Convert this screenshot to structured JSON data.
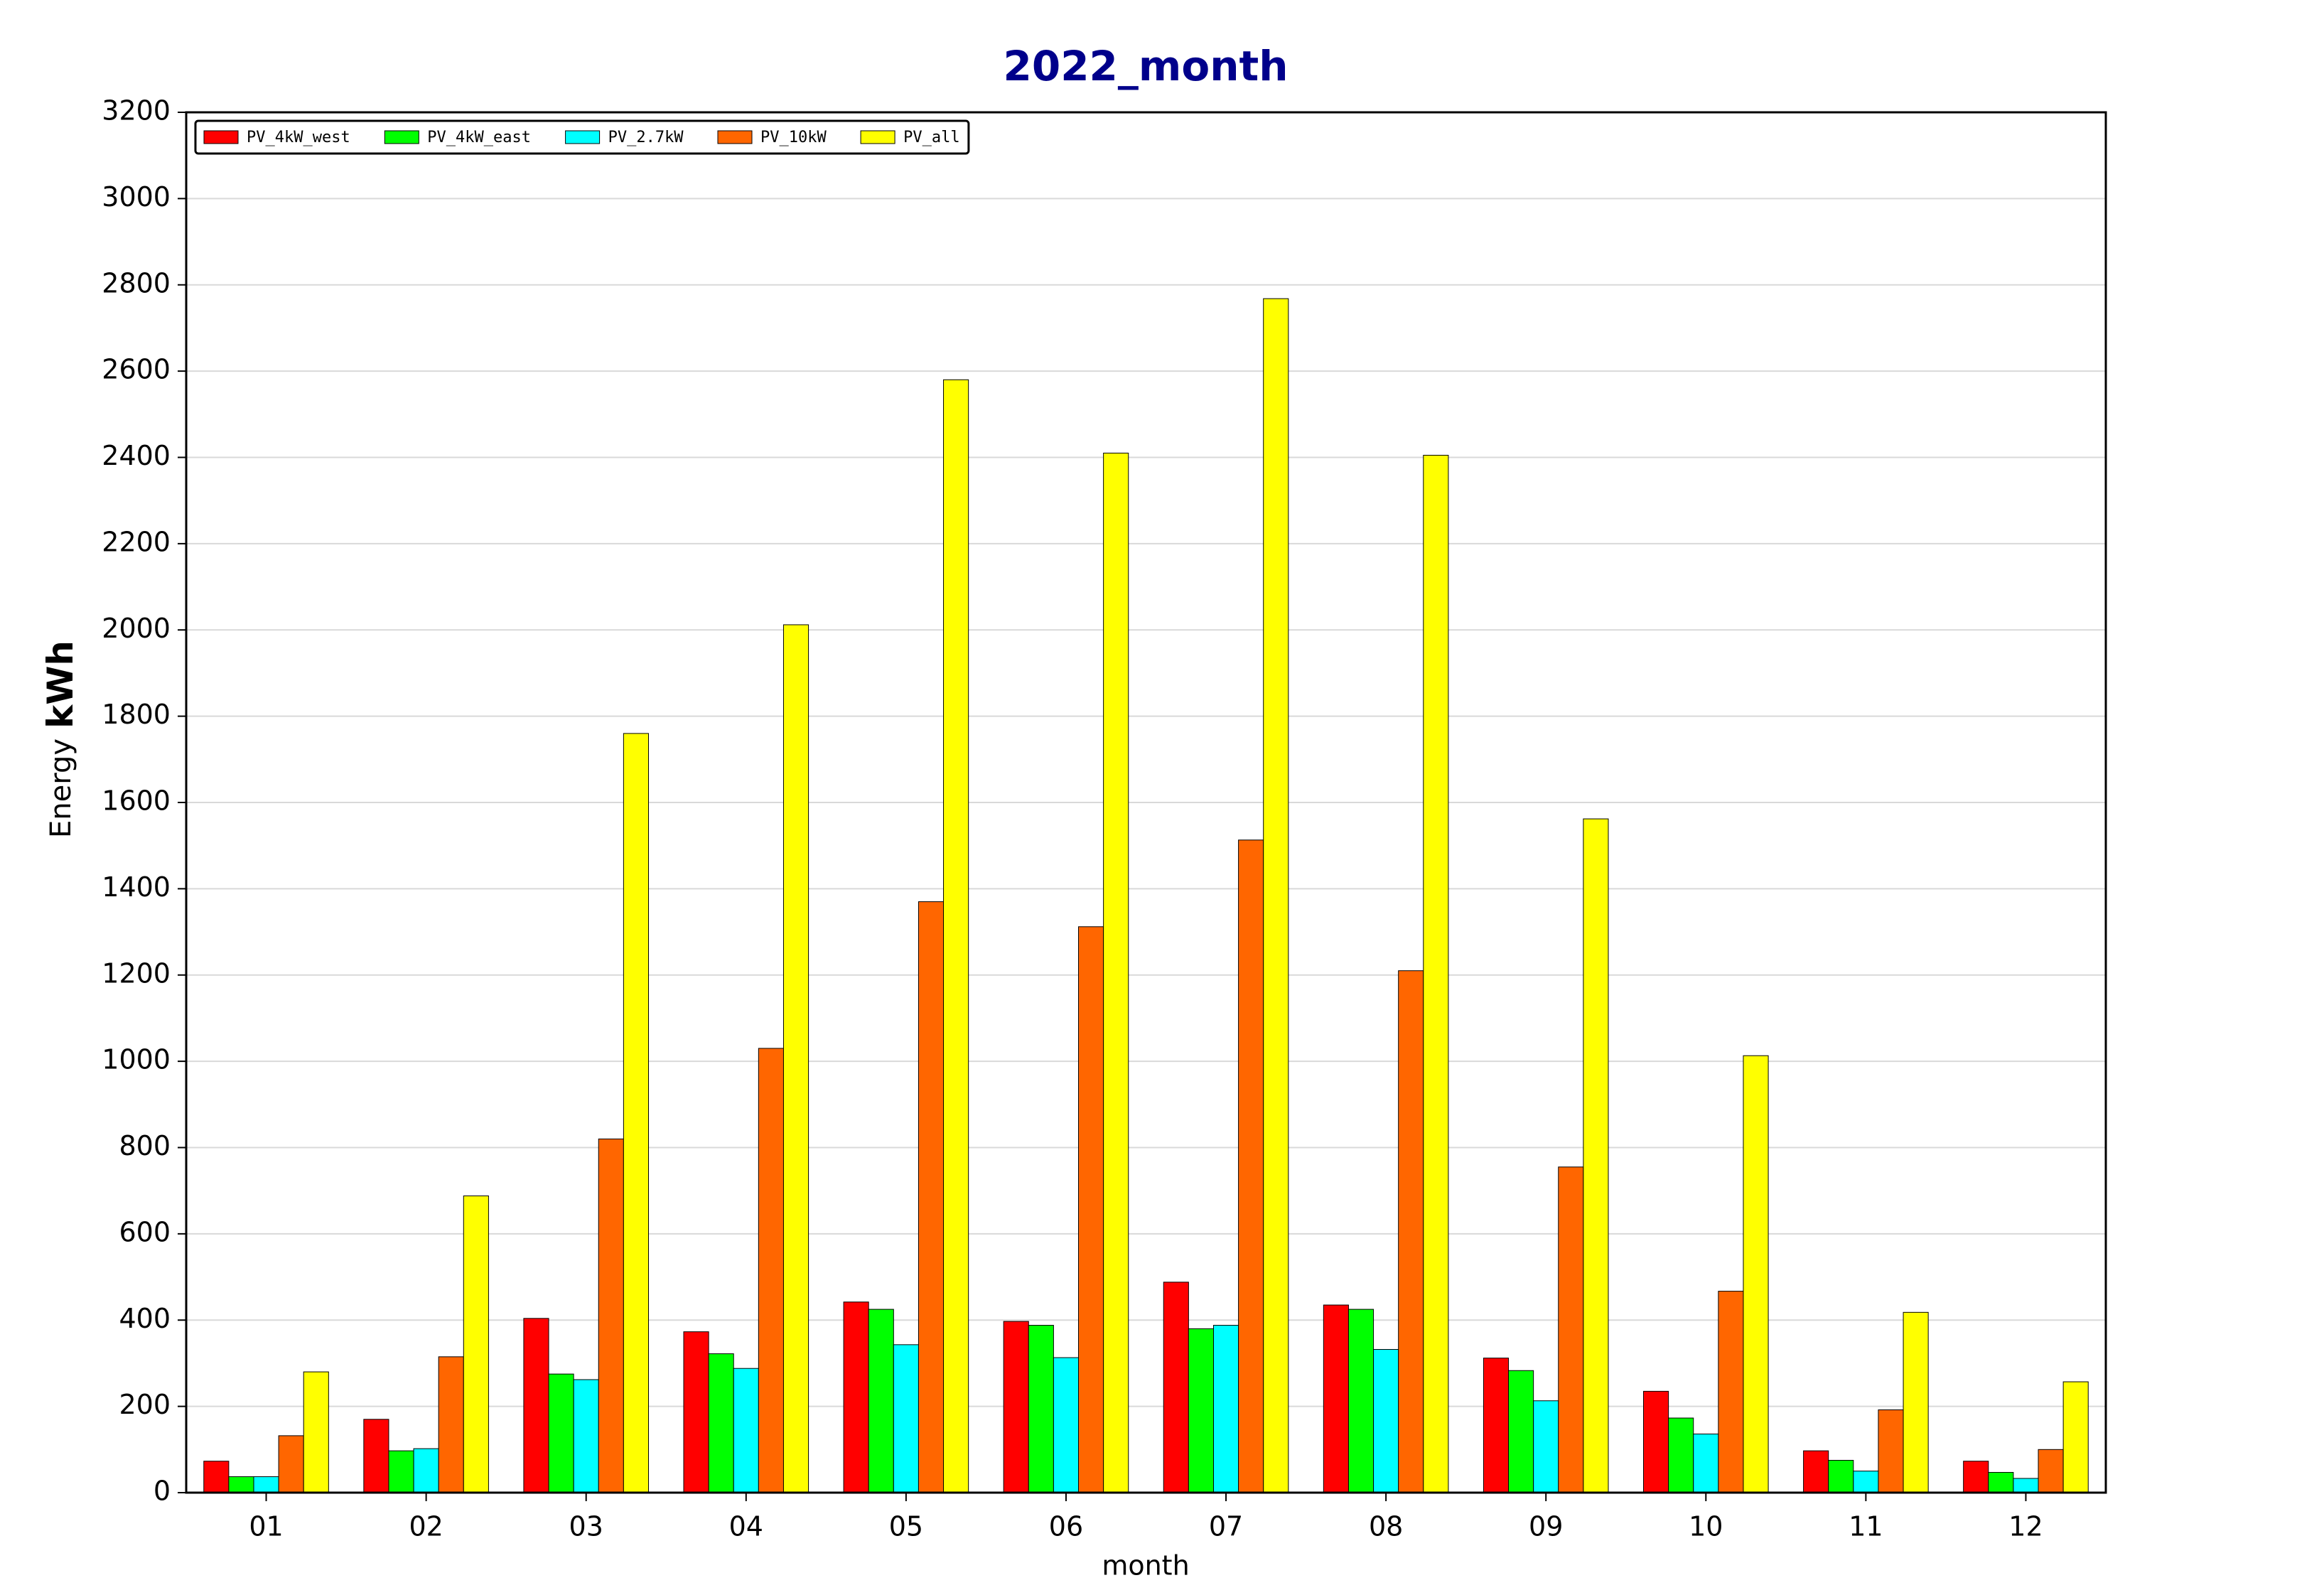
{
  "chart_data": {
    "type": "bar",
    "title": "2022_month",
    "xlabel": "month",
    "ylabel": "Energy",
    "ylabel_unit": "kWh",
    "categories": [
      "01",
      "02",
      "03",
      "04",
      "05",
      "06",
      "07",
      "08",
      "09",
      "10",
      "11",
      "12"
    ],
    "series": [
      {
        "name": "PV_4kW_west",
        "color": "#ff0000",
        "values": [
          73,
          170,
          404,
          373,
          442,
          397,
          488,
          435,
          312,
          235,
          97,
          73
        ]
      },
      {
        "name": "PV_4kW_east",
        "color": "#00ff00",
        "values": [
          37,
          97,
          275,
          322,
          425,
          388,
          380,
          425,
          283,
          173,
          75,
          47
        ]
      },
      {
        "name": "PV_2.7kW",
        "color": "#00ffff",
        "values": [
          37,
          102,
          262,
          288,
          343,
          313,
          388,
          332,
          213,
          136,
          50,
          33
        ]
      },
      {
        "name": "PV_10kW",
        "color": "#ff6600",
        "values": [
          132,
          315,
          820,
          1030,
          1370,
          1312,
          1513,
          1210,
          755,
          467,
          192,
          100
        ]
      },
      {
        "name": "PV_all",
        "color": "#ffff00",
        "values": [
          280,
          688,
          1760,
          2012,
          2580,
          2410,
          2768,
          2405,
          1562,
          1013,
          418,
          257
        ]
      }
    ],
    "ylim": [
      0,
      3200
    ],
    "yticks": [
      0,
      200,
      400,
      600,
      800,
      1000,
      1200,
      1400,
      1600,
      1800,
      2000,
      2200,
      2400,
      2600,
      2800,
      3000,
      3200
    ],
    "grid": true,
    "legend": "upper-left"
  }
}
